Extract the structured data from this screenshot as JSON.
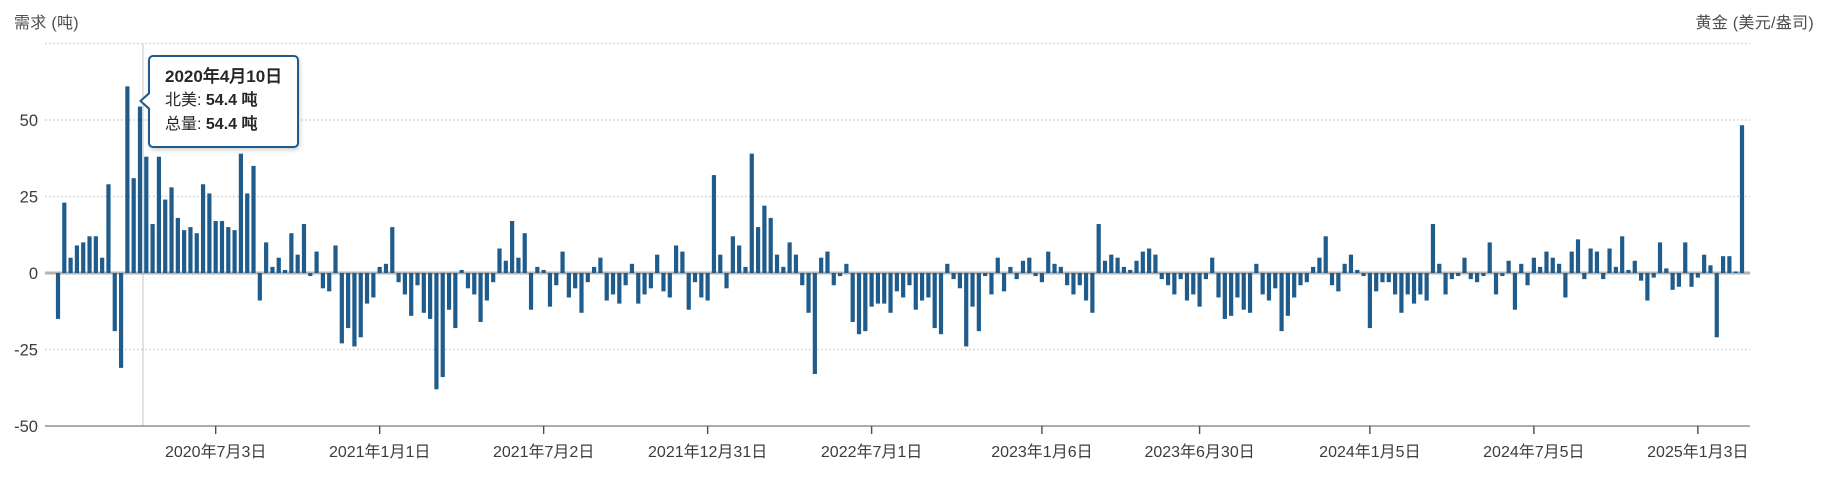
{
  "header": {
    "left_axis_title": "需求 (吨)",
    "right_axis_title": "黄金 (美元/盎司)"
  },
  "tooltip": {
    "date": "2020年4月10日",
    "rows": [
      {
        "label": "北美:",
        "value": "54.4 吨"
      },
      {
        "label": "总量:",
        "value": "54.4 吨"
      }
    ]
  },
  "colors": {
    "bar": "#1f5c8c",
    "tooltip_border": "#1c5b8f",
    "grid_dotted": "#c9c9c9",
    "zero_line": "#b3b3b3",
    "axis_line": "#8f8f8f",
    "tick_text": "#3c3c3c",
    "crosshair": "#cfcfcf"
  },
  "chart_data": {
    "type": "bar",
    "title": "",
    "xlabel": "",
    "ylabel": "需求 (吨)",
    "secondary_ylabel": "黄金 (美元/盎司)",
    "unit": "吨",
    "ylim": [
      -50,
      75
    ],
    "grid": "horizontal-dotted",
    "legend": "none",
    "y_ticks": [
      50,
      25,
      0,
      -25,
      -50
    ],
    "x_tick_labels": [
      "2020年7月3日",
      "2021年1月1日",
      "2021年7月2日",
      "2021年12月31日",
      "2022年7月1日",
      "2023年1月6日",
      "2023年6月30日",
      "2024年1月5日",
      "2024年7月5日",
      "2025年1月3日"
    ],
    "x_tick_indices": [
      25,
      51,
      77,
      103,
      129,
      156,
      181,
      208,
      234,
      260
    ],
    "highlight": {
      "index": 13,
      "date": "2020年4月10日",
      "series": "北美",
      "value": 54.4,
      "total": 54.4
    },
    "values": [
      -15,
      23,
      5,
      9,
      10,
      12,
      12,
      5,
      29,
      -19,
      -31,
      61,
      31,
      54.4,
      38,
      16,
      38,
      24,
      28,
      18,
      14,
      15,
      13,
      29,
      26,
      17,
      17,
      15,
      14,
      39,
      26,
      35,
      -9,
      10,
      2,
      5,
      1,
      13,
      6,
      16,
      -1,
      7,
      -5,
      -6,
      9,
      -23,
      -18,
      -24,
      -21,
      -10,
      -8,
      2,
      3,
      15,
      -3,
      -7,
      -14,
      -4,
      -13,
      -15,
      -38,
      -34,
      -12,
      -18,
      1,
      -5,
      -7,
      -16,
      -9,
      -3,
      8,
      4,
      17,
      5,
      13,
      -12,
      2,
      1,
      -11,
      -4,
      7,
      -8,
      -5,
      -13,
      -3,
      2,
      5,
      -9,
      -7,
      -10,
      -4,
      3,
      -10,
      -7,
      -5,
      6,
      -6,
      -8,
      9,
      7,
      -12,
      -3,
      -8,
      -9,
      32,
      6,
      -5,
      12,
      9,
      2,
      39,
      15,
      22,
      18,
      6,
      2,
      10,
      6,
      -4,
      -13,
      -33,
      5,
      7,
      -4,
      -1,
      3,
      -16,
      -20,
      -19,
      -11,
      -10,
      -10,
      -13,
      -6,
      -8,
      -4,
      -12,
      -9,
      -8,
      -18,
      -20,
      3,
      -2,
      -5,
      -24,
      -11,
      -19,
      -1,
      -7,
      5,
      -6,
      2,
      -2,
      4,
      5,
      -1,
      -3,
      7,
      3,
      2,
      -4,
      -7,
      -4,
      -9,
      -13,
      16,
      4,
      6,
      5,
      2,
      1,
      4,
      7,
      8,
      6,
      -2,
      -4,
      -7,
      -2,
      -9,
      -7,
      -11,
      -2,
      5,
      -8,
      -15,
      -14,
      -8,
      -12,
      -13,
      3,
      -7,
      -9,
      -5,
      -19,
      -14,
      -8,
      -4,
      -3,
      2,
      5,
      12,
      -4,
      -6,
      3,
      6,
      1,
      -1,
      -18,
      -6,
      -3,
      -3,
      -7,
      -13,
      -7,
      -10,
      -7,
      -9,
      16,
      3,
      -7,
      -2,
      -1,
      5,
      -2,
      -3,
      -1,
      10,
      -7,
      -1,
      4,
      -12,
      3,
      -4,
      5,
      2,
      7,
      5,
      3,
      -8,
      7,
      11,
      -2,
      8,
      7,
      -2,
      8,
      2,
      12,
      1,
      4,
      -2.5,
      -9,
      -1.5,
      10,
      1.5,
      -5.5,
      -4.5,
      10,
      -4.5,
      -1.5,
      6,
      2.5,
      -21,
      5.5,
      5.5,
      0.5,
      48.3
    ]
  }
}
